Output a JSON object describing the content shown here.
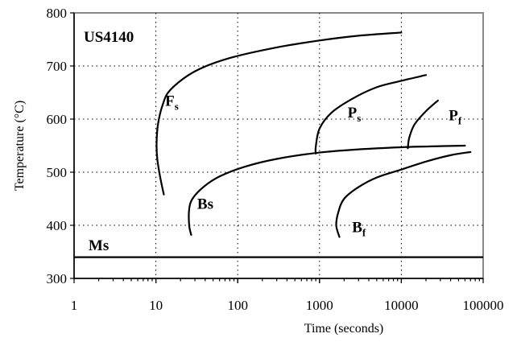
{
  "chart_data": {
    "type": "line",
    "title": "US4140",
    "xlabel": "Time (seconds)",
    "ylabel": "Temperature (°C)",
    "x_scale": "log",
    "xlim": [
      1,
      100000
    ],
    "ylim": [
      300,
      800
    ],
    "x_ticks": [
      1,
      10,
      100,
      1000,
      10000,
      100000
    ],
    "x_tick_labels": [
      "1",
      "10",
      "100",
      "1000",
      "10000",
      "100000"
    ],
    "y_ticks": [
      300,
      400,
      500,
      600,
      700,
      800
    ],
    "y_tick_labels": [
      "300",
      "400",
      "500",
      "600",
      "700",
      "800"
    ],
    "grid": "dotted, major ticks",
    "legend": "none",
    "series": [
      {
        "name": "Fs",
        "label_main": "F",
        "label_sub": "s",
        "label_pos": [
          13,
          625
        ],
        "points": [
          [
            12.5,
            458
          ],
          [
            11.3,
            490
          ],
          [
            10.4,
            525
          ],
          [
            10.2,
            555
          ],
          [
            10.6,
            590
          ],
          [
            12,
            625
          ],
          [
            15,
            655
          ],
          [
            30,
            690
          ],
          [
            80,
            715
          ],
          [
            300,
            735
          ],
          [
            1000,
            748
          ],
          [
            3000,
            757
          ],
          [
            10000,
            763
          ]
        ]
      },
      {
        "name": "Ps",
        "label_main": "P",
        "label_sub": "s",
        "label_pos": [
          2200,
          603
        ],
        "points": [
          [
            900,
            535
          ],
          [
            900,
            548
          ],
          [
            1000,
            582
          ],
          [
            1400,
            612
          ],
          [
            2500,
            638
          ],
          [
            5000,
            660
          ],
          [
            10000,
            672
          ],
          [
            20000,
            683
          ]
        ]
      },
      {
        "name": "Pf",
        "label_main": "P",
        "label_sub": "f",
        "label_pos": [
          38000,
          598
        ],
        "points": [
          [
            12000,
            545
          ],
          [
            12500,
            565
          ],
          [
            14500,
            590
          ],
          [
            20000,
            615
          ],
          [
            28000,
            635
          ]
        ]
      },
      {
        "name": "Bs",
        "label_main": "Bs",
        "label_sub": "",
        "label_pos": [
          32,
          431
        ],
        "points": [
          [
            27,
            382
          ],
          [
            25.5,
            400
          ],
          [
            25.5,
            430
          ],
          [
            28,
            450
          ],
          [
            38,
            472
          ],
          [
            60,
            492
          ],
          [
            120,
            510
          ],
          [
            300,
            525
          ],
          [
            1000,
            537
          ],
          [
            3000,
            543
          ],
          [
            10000,
            547
          ],
          [
            30000,
            549
          ],
          [
            60000,
            550
          ]
        ]
      },
      {
        "name": "Bf",
        "label_main": "B",
        "label_sub": "f",
        "label_pos": [
          2500,
          387
        ],
        "points": [
          [
            1750,
            378
          ],
          [
            1600,
            400
          ],
          [
            1700,
            425
          ],
          [
            2000,
            450
          ],
          [
            3000,
            472
          ],
          [
            5000,
            490
          ],
          [
            10000,
            505
          ],
          [
            20000,
            520
          ],
          [
            40000,
            532
          ],
          [
            70000,
            538
          ]
        ]
      },
      {
        "name": "Ms",
        "label_main": "Ms",
        "label_sub": "",
        "label_pos": [
          1.5,
          353
        ],
        "points": [
          [
            1,
            340
          ],
          [
            100000,
            340
          ]
        ]
      }
    ]
  }
}
